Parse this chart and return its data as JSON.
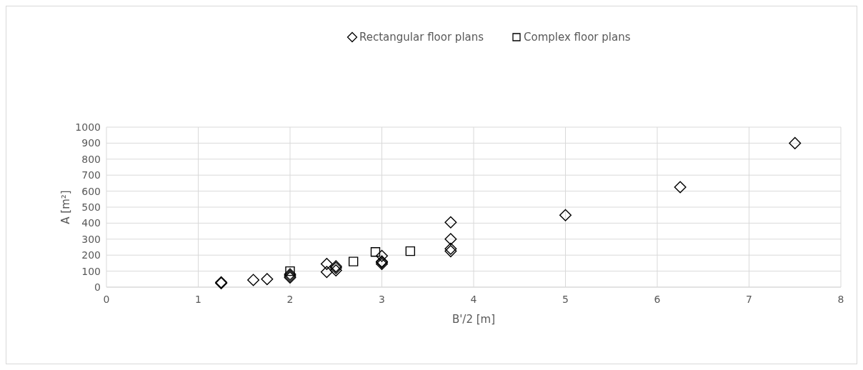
{
  "chart_data": {
    "type": "scatter",
    "xlabel": "B'/2 [m]",
    "ylabel": "A [m²]",
    "series": [
      {
        "name": "Rectangular floor plans",
        "color": "#000000",
        "marker": "diamond",
        "x": [
          1.25,
          1.25,
          1.6,
          1.75,
          2,
          2,
          2,
          2.4,
          2.4,
          2.5,
          2.5,
          2.5,
          3,
          3,
          3,
          3,
          3.75,
          3.75,
          3.75,
          3.75,
          5,
          6.25,
          7.5
        ],
        "values": [
          25,
          30,
          45,
          50,
          60,
          70,
          80,
          95,
          145,
          105,
          120,
          130,
          145,
          155,
          160,
          195,
          225,
          240,
          300,
          405,
          450,
          625,
          900
        ]
      },
      {
        "name": "Complex floor plans",
        "color": "#000000",
        "marker": "square",
        "x": [
          2,
          2.69,
          2.93,
          3.31
        ],
        "values": [
          100,
          160,
          220,
          225
        ]
      }
    ],
    "xlim": [
      0,
      8
    ],
    "xticks": [
      0,
      1,
      2,
      3,
      4,
      5,
      6,
      7,
      8
    ],
    "ylim": [
      0,
      1000
    ],
    "yticks": [
      0,
      100,
      200,
      300,
      400,
      500,
      600,
      700,
      800,
      900,
      1000
    ],
    "grid": true,
    "legend": "top"
  }
}
